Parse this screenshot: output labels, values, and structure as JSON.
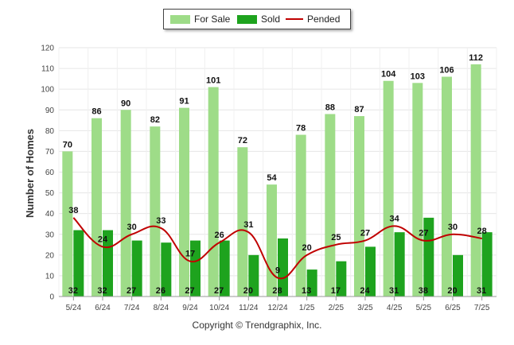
{
  "chart_data": {
    "type": "bar",
    "categories": [
      "5/24",
      "6/24",
      "7/24",
      "8/24",
      "9/24",
      "10/24",
      "11/24",
      "12/24",
      "1/25",
      "2/25",
      "3/25",
      "4/25",
      "5/25",
      "6/25",
      "7/25"
    ],
    "series": [
      {
        "name": "For Sale",
        "type": "bar",
        "color": "#9edc88",
        "values": [
          70,
          86,
          90,
          82,
          91,
          101,
          72,
          54,
          78,
          88,
          87,
          104,
          103,
          106,
          112
        ]
      },
      {
        "name": "Sold",
        "type": "bar",
        "color": "#1ea31e",
        "values": [
          32,
          32,
          27,
          26,
          27,
          27,
          20,
          28,
          13,
          17,
          24,
          31,
          38,
          20,
          31
        ]
      },
      {
        "name": "Pended",
        "type": "line",
        "color": "#c00000",
        "values": [
          38,
          24,
          30,
          33,
          17,
          26,
          31,
          9,
          20,
          25,
          27,
          34,
          27,
          30,
          28
        ]
      }
    ],
    "title": "",
    "xlabel": "",
    "ylabel": "Number of Homes",
    "ylim": [
      0,
      120
    ],
    "yticks": [
      0,
      10,
      20,
      30,
      40,
      50,
      60,
      70,
      80,
      90,
      100,
      110,
      120
    ],
    "grid": true,
    "legend_position": "top-center"
  },
  "legend": {
    "for_sale": "For Sale",
    "sold": "Sold",
    "pended": "Pended"
  },
  "footer": "Copyright © Trendgraphix, Inc."
}
